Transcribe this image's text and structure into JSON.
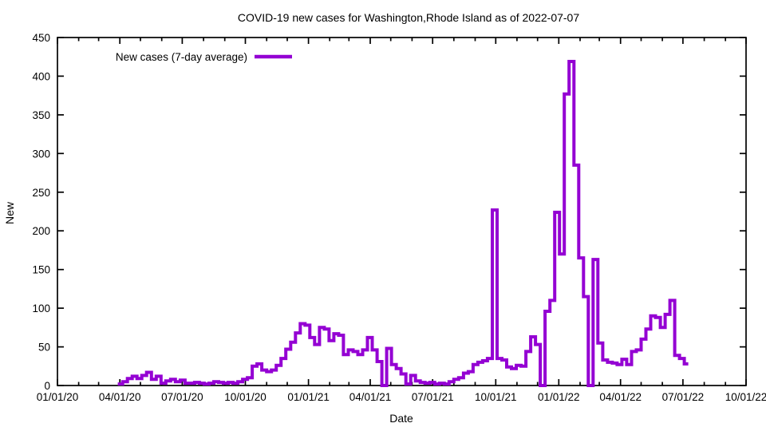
{
  "chart_data": {
    "type": "line",
    "style": "steps",
    "title": "COVID-19 new cases for Washington,Rhode Island as of 2022-07-07",
    "xlabel": "Date",
    "ylabel": "New",
    "legend": "New cases (7-day average)",
    "line_color": "#9400d3",
    "axis_color": "#000000",
    "background_color": "#ffffff",
    "grid": false,
    "legend_position": "top-left-inside",
    "ylim": [
      0,
      450
    ],
    "xlim": [
      "2020-01-01",
      "2022-10-01"
    ],
    "y_ticks": [
      0,
      50,
      100,
      150,
      200,
      250,
      300,
      350,
      400,
      450
    ],
    "x_ticks": [
      {
        "label": "01/01/20",
        "date": "2020-01-01"
      },
      {
        "label": "04/01/20",
        "date": "2020-04-01"
      },
      {
        "label": "07/01/20",
        "date": "2020-07-01"
      },
      {
        "label": "10/01/20",
        "date": "2020-10-01"
      },
      {
        "label": "01/01/21",
        "date": "2021-01-01"
      },
      {
        "label": "04/01/21",
        "date": "2021-04-01"
      },
      {
        "label": "07/01/21",
        "date": "2021-07-01"
      },
      {
        "label": "10/01/21",
        "date": "2021-10-01"
      },
      {
        "label": "01/01/22",
        "date": "2022-01-01"
      },
      {
        "label": "04/01/22",
        "date": "2022-04-01"
      },
      {
        "label": "07/01/22",
        "date": "2022-07-01"
      },
      {
        "label": "10/01/22",
        "date": "2022-10-01"
      }
    ],
    "series": [
      {
        "name": "New cases (7-day average)",
        "dates": [
          "2020-03-29",
          "2020-04-05",
          "2020-04-12",
          "2020-04-19",
          "2020-04-26",
          "2020-05-03",
          "2020-05-10",
          "2020-05-17",
          "2020-05-24",
          "2020-05-31",
          "2020-06-07",
          "2020-06-14",
          "2020-06-21",
          "2020-06-28",
          "2020-07-05",
          "2020-07-12",
          "2020-07-19",
          "2020-07-26",
          "2020-08-02",
          "2020-08-09",
          "2020-08-16",
          "2020-08-23",
          "2020-08-30",
          "2020-09-06",
          "2020-09-13",
          "2020-09-20",
          "2020-09-27",
          "2020-10-04",
          "2020-10-11",
          "2020-10-18",
          "2020-10-25",
          "2020-11-01",
          "2020-11-08",
          "2020-11-15",
          "2020-11-22",
          "2020-11-29",
          "2020-12-06",
          "2020-12-13",
          "2020-12-20",
          "2020-12-27",
          "2021-01-03",
          "2021-01-10",
          "2021-01-17",
          "2021-01-24",
          "2021-01-31",
          "2021-02-07",
          "2021-02-14",
          "2021-02-21",
          "2021-02-28",
          "2021-03-07",
          "2021-03-14",
          "2021-03-21",
          "2021-03-28",
          "2021-04-04",
          "2021-04-11",
          "2021-04-18",
          "2021-04-25",
          "2021-05-02",
          "2021-05-09",
          "2021-05-16",
          "2021-05-23",
          "2021-05-30",
          "2021-06-06",
          "2021-06-13",
          "2021-06-20",
          "2021-06-27",
          "2021-07-04",
          "2021-07-11",
          "2021-07-18",
          "2021-07-25",
          "2021-08-01",
          "2021-08-08",
          "2021-08-15",
          "2021-08-22",
          "2021-08-29",
          "2021-09-05",
          "2021-09-12",
          "2021-09-19",
          "2021-09-26",
          "2021-10-03",
          "2021-10-10",
          "2021-10-17",
          "2021-10-24",
          "2021-10-31",
          "2021-11-07",
          "2021-11-14",
          "2021-11-21",
          "2021-11-28",
          "2021-12-05",
          "2021-12-12",
          "2021-12-19",
          "2021-12-26",
          "2022-01-02",
          "2022-01-09",
          "2022-01-16",
          "2022-01-23",
          "2022-01-30",
          "2022-02-06",
          "2022-02-13",
          "2022-02-20",
          "2022-02-27",
          "2022-03-06",
          "2022-03-13",
          "2022-03-20",
          "2022-03-27",
          "2022-04-03",
          "2022-04-10",
          "2022-04-17",
          "2022-04-24",
          "2022-05-01",
          "2022-05-08",
          "2022-05-15",
          "2022-05-22",
          "2022-05-29",
          "2022-06-05",
          "2022-06-12",
          "2022-06-19",
          "2022-06-26",
          "2022-07-03"
        ],
        "values": [
          2,
          5,
          9,
          12,
          9,
          13,
          17,
          8,
          12,
          3,
          6,
          8,
          5,
          7,
          3,
          3,
          4,
          3,
          2,
          3,
          5,
          4,
          3,
          4,
          3,
          5,
          8,
          10,
          25,
          28,
          20,
          18,
          20,
          26,
          35,
          47,
          56,
          68,
          80,
          78,
          62,
          53,
          75,
          73,
          58,
          67,
          65,
          40,
          46,
          44,
          40,
          46,
          62,
          46,
          31,
          0,
          48,
          27,
          22,
          15,
          2,
          13,
          6,
          4,
          3,
          4,
          2,
          3,
          2,
          5,
          8,
          10,
          16,
          18,
          27,
          30,
          32,
          35,
          227,
          35,
          33,
          24,
          22,
          26,
          25,
          44,
          63,
          53,
          0,
          96,
          110,
          224,
          170,
          377,
          419,
          285,
          165,
          115,
          0,
          163,
          55,
          33,
          30,
          29,
          27,
          34,
          27,
          44,
          46,
          60,
          73,
          90,
          88,
          75,
          92,
          110,
          39,
          35,
          28
        ]
      }
    ]
  }
}
